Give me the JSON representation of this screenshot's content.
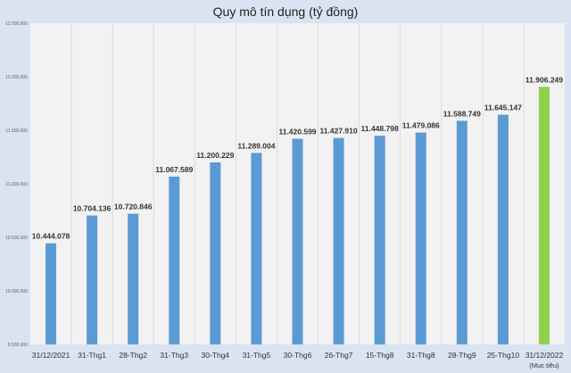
{
  "chart_data": {
    "type": "bar",
    "title": "Quy mô tín dụng (tỷ đồng)",
    "xlabel": "",
    "ylabel": "",
    "ylim": [
      9500000,
      12500000
    ],
    "yticks": [
      9500000,
      10000000,
      10500000,
      11000000,
      11500000,
      12000000,
      12500000
    ],
    "ytick_labels": [
      "9.500.000",
      "10.000.000",
      "10.500.000",
      "11.000.000",
      "11.500.000",
      "12.000.000",
      "12.500.000"
    ],
    "categories": [
      "31/12/2021",
      "31-Thg1",
      "28-Thg2",
      "31-Thg3",
      "30-Thg4",
      "31-Thg5",
      "30-Thg6",
      "26-Thg7",
      "15-Thg8",
      "31-Thg8",
      "28-Thg9",
      "25-Thg10",
      "31/12/2022\n(Mục tiêu)"
    ],
    "values": [
      10444078,
      10704136,
      10720846,
      11067589,
      11200229,
      11289004,
      11420599,
      11427910,
      11448798,
      11479086,
      11588749,
      11645147,
      11906249
    ],
    "data_labels": [
      "10.444.078",
      "10.704.136",
      "10.720.846",
      "11.067.589",
      "11.200.229",
      "11.289.004",
      "11.420.599",
      "11.427.910",
      "11.448.798",
      "11.479.086",
      "11.588.749",
      "11.645.147",
      "11.906.249"
    ],
    "grid": "vertical category separators",
    "colors": {
      "bar": "#5b9bd5",
      "highlight_bar": "#92d050",
      "plot_bg": "#f2f2f2",
      "background": "#d9e3f2"
    }
  }
}
